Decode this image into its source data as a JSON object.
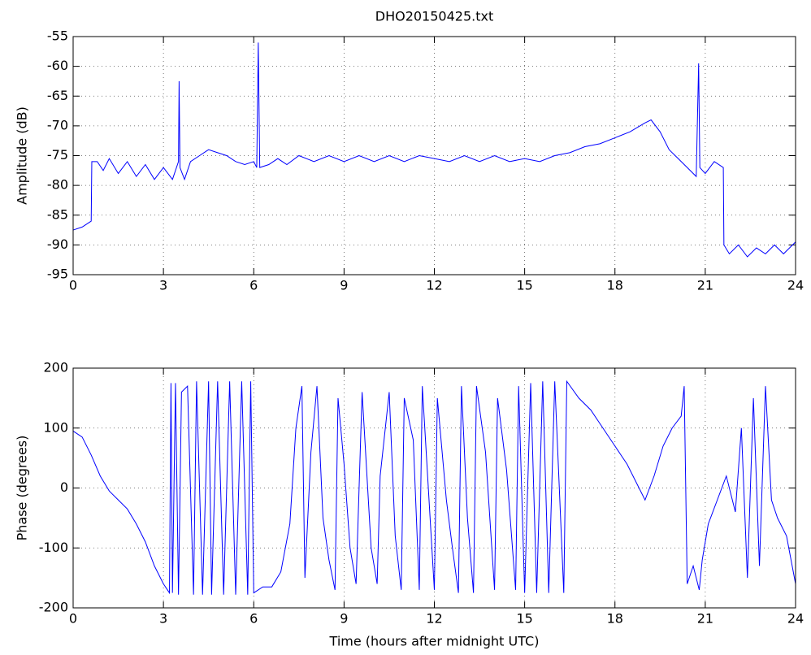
{
  "chart_data": [
    {
      "type": "line",
      "title": "DHO20150425.txt",
      "y_label": "Amplitude (dB)",
      "grid": true,
      "xlim": [
        0,
        24
      ],
      "xticks": [
        0,
        3,
        6,
        9,
        12,
        15,
        18,
        21,
        24
      ],
      "ylim": [
        -95,
        -55
      ],
      "yticks": [
        -95,
        -90,
        -85,
        -80,
        -75,
        -70,
        -65,
        -60,
        -55
      ],
      "x": [
        0,
        0.3,
        0.6,
        0.62,
        0.8,
        1.0,
        1.2,
        1.5,
        1.8,
        2.1,
        2.4,
        2.7,
        3.0,
        3.3,
        3.5,
        3.52,
        3.55,
        3.7,
        3.9,
        4.2,
        4.5,
        4.8,
        5.1,
        5.4,
        5.7,
        6.0,
        6.1,
        6.15,
        6.2,
        6.5,
        6.8,
        7.1,
        7.5,
        8,
        8.5,
        9,
        9.5,
        10,
        10.5,
        11,
        11.5,
        12,
        12.5,
        13,
        13.5,
        14,
        14.5,
        15,
        15.5,
        16,
        16.5,
        17,
        17.5,
        18,
        18.5,
        19,
        19.2,
        19.5,
        19.8,
        20.1,
        20.4,
        20.7,
        20.78,
        20.82,
        21,
        21.3,
        21.6,
        21.62,
        21.8,
        22.1,
        22.4,
        22.7,
        23,
        23.3,
        23.6,
        24
      ],
      "series": [
        {
          "color": "#0000ff",
          "values": [
            -87.5,
            -87,
            -86,
            -76,
            -76,
            -77.5,
            -75.5,
            -78,
            -76,
            -78.5,
            -76.5,
            -79,
            -77,
            -79,
            -76,
            -62.5,
            -77,
            -79,
            -76,
            -75,
            -74,
            -74.5,
            -75,
            -76,
            -76.5,
            -76,
            -77,
            -56,
            -77,
            -76.5,
            -75.5,
            -76.5,
            -75,
            -76,
            -75,
            -76,
            -75,
            -76,
            -75,
            -76,
            -75,
            -75.5,
            -76,
            -75,
            -76,
            -75,
            -76,
            -75.5,
            -76,
            -75,
            -74.5,
            -73.5,
            -73,
            -72,
            -71,
            -69.5,
            -69,
            -71,
            -74,
            -75.5,
            -77,
            -78.5,
            -59.5,
            -77,
            -78,
            -76,
            -77,
            -90,
            -91.5,
            -90,
            -92,
            -90.5,
            -91.5,
            -90,
            -91.5,
            -89.5
          ]
        }
      ]
    },
    {
      "type": "line",
      "x_label": "Time (hours after midnight UTC)",
      "y_label": "Phase (degrees)",
      "grid": true,
      "xlim": [
        0,
        24
      ],
      "xticks": [
        0,
        3,
        6,
        9,
        12,
        15,
        18,
        21,
        24
      ],
      "ylim": [
        -200,
        200
      ],
      "yticks": [
        -200,
        -100,
        0,
        100,
        200
      ],
      "x": [
        0,
        0.3,
        0.6,
        0.9,
        1.2,
        1.5,
        1.8,
        2.1,
        2.4,
        2.7,
        3.0,
        3.2,
        3.25,
        3.3,
        3.4,
        3.5,
        3.6,
        3.8,
        4.0,
        4.1,
        4.3,
        4.5,
        4.6,
        4.8,
        5.0,
        5.2,
        5.4,
        5.6,
        5.8,
        5.9,
        6.0,
        6.3,
        6.6,
        6.9,
        7.2,
        7.4,
        7.6,
        7.7,
        7.9,
        8.1,
        8.3,
        8.5,
        8.7,
        8.8,
        9.0,
        9.2,
        9.4,
        9.6,
        9.9,
        10.1,
        10.2,
        10.5,
        10.7,
        10.9,
        11.0,
        11.3,
        11.5,
        11.6,
        11.8,
        12.0,
        12.1,
        12.4,
        12.6,
        12.8,
        12.9,
        13.1,
        13.3,
        13.4,
        13.7,
        14.0,
        14.1,
        14.4,
        14.7,
        14.8,
        15.0,
        15.2,
        15.4,
        15.6,
        15.8,
        16.0,
        16.3,
        16.4,
        16.8,
        17.2,
        17.6,
        18.0,
        18.4,
        18.8,
        19.0,
        19.3,
        19.6,
        19.9,
        20.2,
        20.3,
        20.4,
        20.6,
        20.8,
        20.9,
        21.1,
        21.4,
        21.7,
        22.0,
        22.2,
        22.4,
        22.6,
        22.8,
        23.0,
        23.2,
        23.4,
        23.7,
        24
      ],
      "series": [
        {
          "color": "#0000ff",
          "values": [
            95,
            85,
            55,
            20,
            -5,
            -20,
            -35,
            -60,
            -90,
            -130,
            -160,
            -175,
            175,
            -175,
            175,
            -178,
            160,
            170,
            -178,
            178,
            -178,
            178,
            -178,
            178,
            -178,
            178,
            -178,
            178,
            -178,
            178,
            -175,
            -165,
            -165,
            -140,
            -60,
            100,
            170,
            -150,
            60,
            170,
            -50,
            -120,
            -170,
            150,
            40,
            -100,
            -160,
            160,
            -100,
            -160,
            20,
            160,
            -80,
            -170,
            150,
            80,
            -170,
            170,
            0,
            -170,
            150,
            -20,
            -100,
            -175,
            170,
            -50,
            -175,
            170,
            60,
            -170,
            150,
            30,
            -170,
            170,
            -175,
            175,
            -175,
            178,
            -175,
            178,
            -175,
            178,
            150,
            130,
            100,
            70,
            40,
            0,
            -20,
            20,
            70,
            100,
            120,
            170,
            -160,
            -130,
            -170,
            -120,
            -60,
            -20,
            20,
            -40,
            100,
            -150,
            150,
            -130,
            170,
            -20,
            -50,
            -80,
            -160
          ]
        }
      ]
    }
  ]
}
